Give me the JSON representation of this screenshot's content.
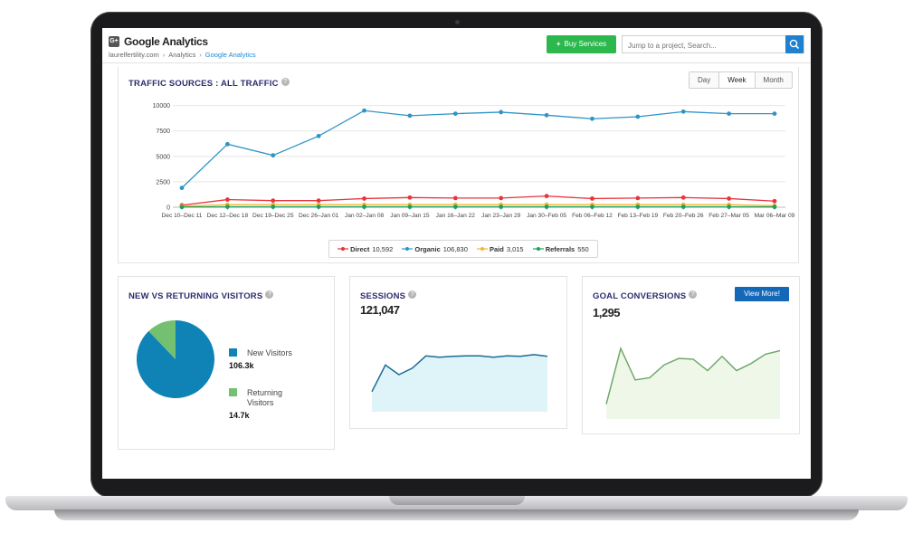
{
  "header": {
    "logo_text": "G+",
    "title": "Google Analytics",
    "breadcrumb": [
      "laurelfertility.com",
      "Analytics",
      "Google Analytics"
    ],
    "buy_button_label": "Buy Services",
    "search_placeholder": "Jump to a project, Search..."
  },
  "traffic": {
    "title": "TRAFFIC SOURCES : ALL TRAFFIC",
    "ranges": [
      "Day",
      "Week",
      "Month"
    ],
    "selected_range": "Week"
  },
  "new_vs_returning": {
    "title": "NEW VS RETURNING VISITORS",
    "new_label": "New Visitors",
    "new_value": "106.3k",
    "returning_label": "Returning Visitors",
    "returning_value": "14.7k",
    "colors": {
      "new": "#0f83b6",
      "returning": "#72c070"
    }
  },
  "sessions": {
    "title": "SESSIONS",
    "total": "121,047",
    "sparkline": [
      1700,
      7800,
      5600,
      7100,
      9900,
      9600,
      9800,
      9900,
      9900,
      9600,
      9900,
      9800,
      10200,
      9800
    ]
  },
  "goals": {
    "title": "GOAL CONVERSIONS",
    "total": "1,295",
    "view_more_label": "View More!",
    "sparkline": [
      3,
      81,
      37,
      40,
      58,
      67,
      66,
      50,
      70,
      50,
      60,
      73,
      78
    ]
  },
  "chart_data": {
    "type": "line",
    "categories": [
      "Dec 10–Dec 11",
      "Dec 12–Dec 18",
      "Dec 19–Dec 25",
      "Dec 26–Jan 01",
      "Jan 02–Jan 08",
      "Jan 09–Jan 15",
      "Jan 16–Jan 22",
      "Jan 23–Jan 29",
      "Jan 30–Feb 05",
      "Feb 06–Feb 12",
      "Feb 13–Feb 19",
      "Feb 20–Feb 26",
      "Feb 27–Mar 05",
      "Mar 06–Mar 09"
    ],
    "yticks": [
      0,
      2500,
      5000,
      7500,
      10000
    ],
    "ylim": [
      0,
      10500
    ],
    "grid": true,
    "series": [
      {
        "name": "Direct",
        "total": "10,592",
        "color": "#e8343d",
        "values": [
          200,
          750,
          650,
          650,
          850,
          950,
          900,
          900,
          1100,
          850,
          900,
          950,
          850,
          600
        ]
      },
      {
        "name": "Organic",
        "total": "106,830",
        "color": "#2f95c4",
        "values": [
          1900,
          6200,
          5100,
          7000,
          9500,
          9000,
          9200,
          9350,
          9050,
          8700,
          8900,
          9400,
          9200,
          9200
        ]
      },
      {
        "name": "Paid",
        "total": "3,015",
        "color": "#f2b631",
        "values": [
          100,
          250,
          250,
          250,
          250,
          250,
          250,
          250,
          250,
          250,
          250,
          250,
          250,
          150
        ]
      },
      {
        "name": "Referrals",
        "total": "550",
        "color": "#1fa05a",
        "values": [
          20,
          40,
          40,
          40,
          40,
          40,
          40,
          40,
          40,
          40,
          40,
          40,
          40,
          30
        ]
      }
    ]
  }
}
